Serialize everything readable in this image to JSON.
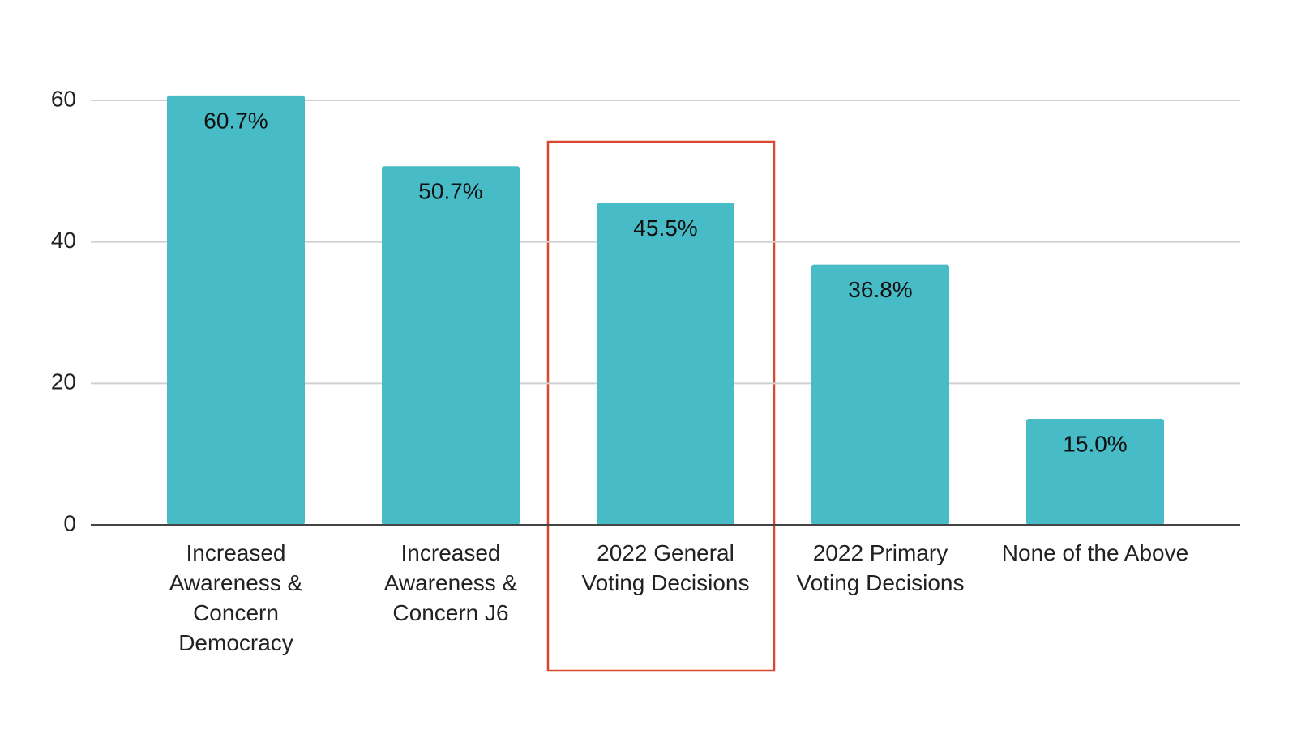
{
  "chart_data": {
    "type": "bar",
    "categories": [
      "Increased Awareness & Concern Democracy",
      "Increased Awareness & Concern J6",
      "2022 General Voting Decisions",
      "2022 Primary Voting Decisions",
      "None of the Above"
    ],
    "values": [
      60.7,
      50.7,
      45.5,
      36.8,
      15.0
    ],
    "value_labels": [
      "60.7%",
      "50.7%",
      "45.5%",
      "36.8%",
      "15.0%"
    ],
    "color": "#47bbc6",
    "ylim": [
      0,
      60
    ],
    "yticks": [
      0,
      20,
      40,
      60
    ],
    "grid": true
  }
}
